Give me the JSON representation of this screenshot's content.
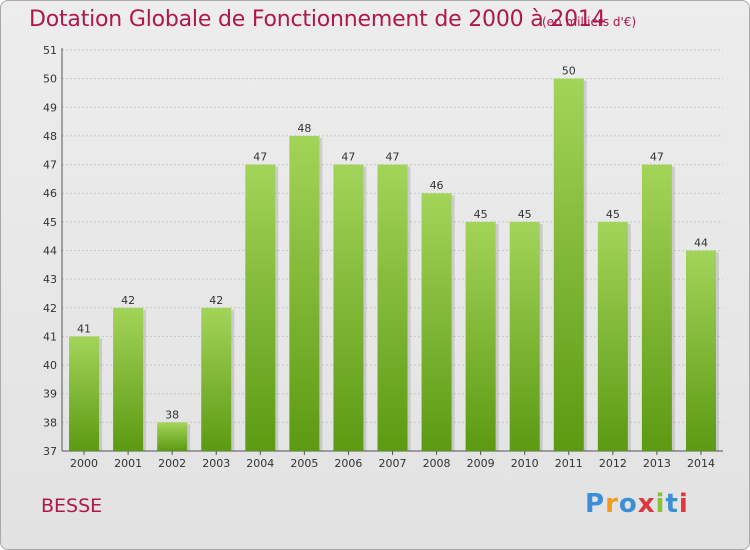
{
  "title": "Dotation Globale de Fonctionnement de 2000 à 2014",
  "subtitle": "(en milliers d'€)",
  "commune": "BESSE",
  "logo": [
    "P",
    "r",
    "o",
    "x",
    "i",
    "t",
    "i"
  ],
  "colors": {
    "bar_top": "#a3d45a",
    "bar_bottom": "#5c9a12",
    "title": "#b0174b"
  },
  "chart_data": {
    "type": "bar",
    "title": "Dotation Globale de Fonctionnement de 2000 à 2014",
    "subtitle": "(en milliers d'€)",
    "categories": [
      "2000",
      "2001",
      "2002",
      "2003",
      "2004",
      "2005",
      "2006",
      "2007",
      "2008",
      "2009",
      "2010",
      "2011",
      "2012",
      "2013",
      "2014"
    ],
    "values": [
      41,
      42,
      38,
      42,
      47,
      48,
      47,
      47,
      46,
      45,
      45,
      50,
      45,
      47,
      44
    ],
    "ylim": [
      37,
      51
    ],
    "yticks": [
      37,
      38,
      39,
      40,
      41,
      42,
      43,
      44,
      45,
      46,
      47,
      48,
      49,
      50,
      51
    ],
    "grid": true,
    "legend": "none"
  }
}
